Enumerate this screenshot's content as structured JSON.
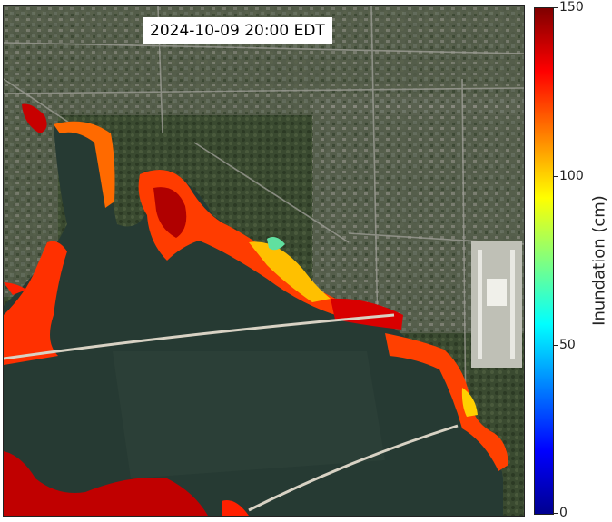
{
  "map": {
    "timestamp": "2024-10-09 20:00 EDT"
  },
  "colorbar": {
    "title": "Inundation (cm)",
    "min": 0,
    "max": 150,
    "ticks": [
      "0",
      "50",
      "100",
      "150"
    ],
    "colormap": "jet",
    "colors": [
      "#00008f",
      "#0000ff",
      "#00ffff",
      "#80ff80",
      "#ffff00",
      "#ff0000",
      "#800000"
    ]
  }
}
